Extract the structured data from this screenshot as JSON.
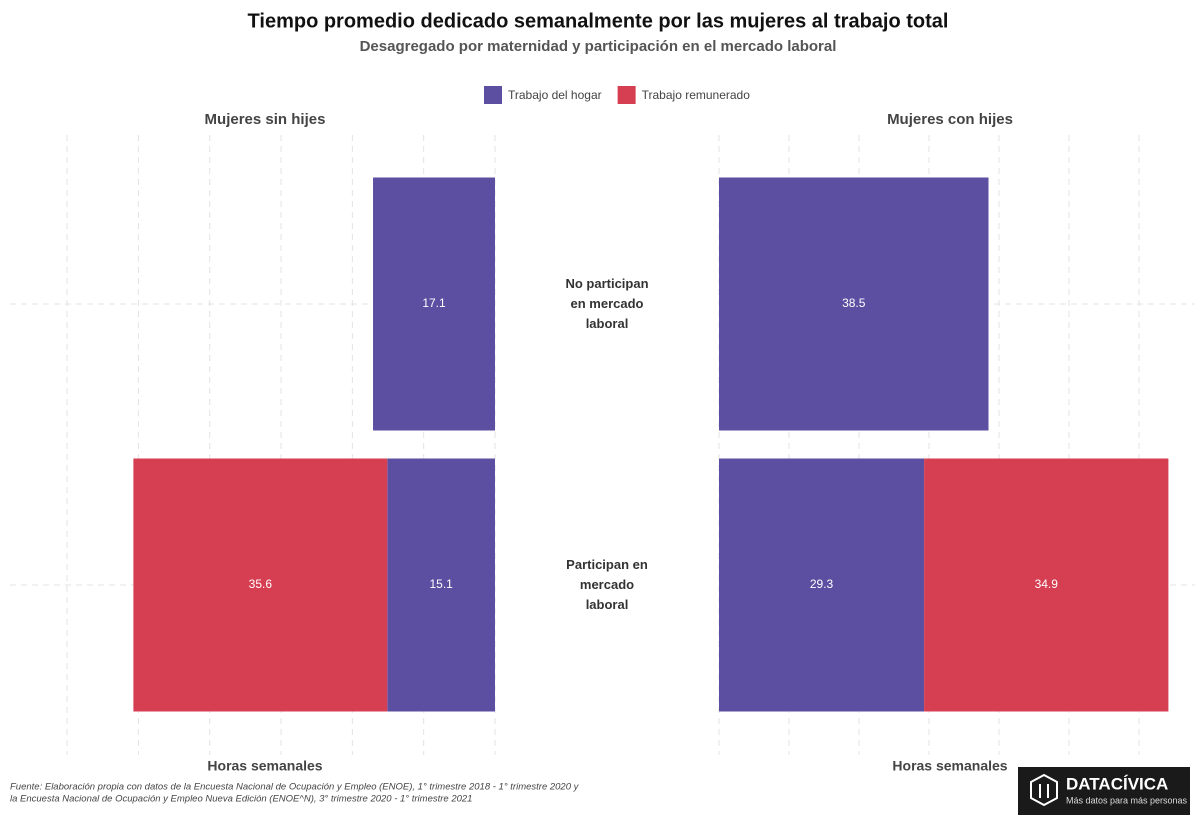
{
  "chart_data": {
    "type": "butterfly",
    "title": "Tiempo promedio dedicado semanalmente por las mujeres al trabajo total",
    "subtitle": "Desagregado por maternidad y participación en el mercado laboral",
    "categories": [
      "No participan en mercado laboral",
      "Participan en mercado laboral"
    ],
    "series": [
      {
        "name": "Trabajo del hogar",
        "color": "#5c4ea0",
        "values": [
          [
            17.1,
            15.1
          ],
          [
            38.5,
            29.3
          ]
        ]
      },
      {
        "name": "Trabajo remunerado",
        "color": "#d63e52",
        "values": [
          [
            null,
            35.6
          ],
          [
            null,
            34.9
          ]
        ]
      }
    ],
    "panels": [
      {
        "title": "Mujeres sin hijes",
        "xlabel": "Horas semanales",
        "reversed": true,
        "xlim": [
          0,
          68
        ],
        "xticks": [
          0,
          10,
          20,
          30,
          40,
          50,
          60
        ]
      },
      {
        "title": "Mujeres con hijes",
        "xlabel": "Horas semanales",
        "reversed": false,
        "xlim": [
          0,
          68
        ],
        "xticks": [
          0,
          10,
          20,
          30,
          40,
          50,
          60
        ]
      }
    ],
    "grid": true,
    "legend": "top",
    "caption": [
      "Fuente: Elaboración propia con datos de la Encuesta Nacional de Ocupación y Empleo (ENOE), 1° trimestre 2018 - 1° trimestre 2020 y",
      "la Encuesta Nacional de Ocupación y Empleo Nueva Edición (ENOE^N), 3° trimestre 2020 - 1° trimestre 2021"
    ],
    "logo": {
      "name": "DATACÍVICA",
      "tagline": "Más datos para más personas"
    }
  }
}
